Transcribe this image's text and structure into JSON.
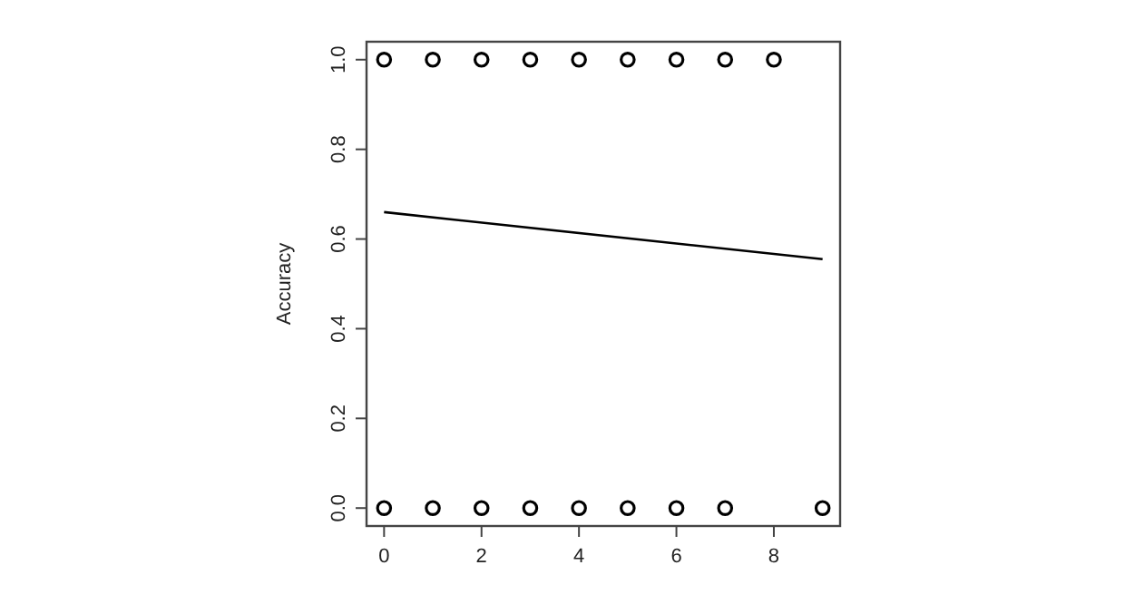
{
  "chart_data": {
    "type": "scatter",
    "ylabel": "Accuracy",
    "xlim": [
      -0.36,
      9.36
    ],
    "ylim": [
      -0.04,
      1.04
    ],
    "xticks": [
      0,
      2,
      4,
      6,
      8
    ],
    "yticks": [
      {
        "value": 0,
        "label": "0.0"
      },
      {
        "value": 0.2,
        "label": "0.2"
      },
      {
        "value": 0.4,
        "label": "0.4"
      },
      {
        "value": 0.6,
        "label": "0.6"
      },
      {
        "value": 0.8,
        "label": "0.8"
      },
      {
        "value": 1,
        "label": "1.0"
      }
    ],
    "grid": false,
    "series": [
      {
        "color": "#000000",
        "marker": "circle",
        "x": [
          0,
          1,
          2,
          3,
          4,
          5,
          6,
          7,
          8,
          0,
          1,
          2,
          3,
          4,
          5,
          6,
          7,
          9
        ],
        "values": [
          1,
          1,
          1,
          1,
          1,
          1,
          1,
          1,
          1,
          0,
          0,
          0,
          0,
          0,
          0,
          0,
          0,
          0
        ]
      },
      {
        "type": "line",
        "color": "#000000",
        "marker": "none",
        "line_style": "solid",
        "x": [
          0,
          9
        ],
        "values": [
          0.66,
          0.555
        ]
      }
    ]
  }
}
